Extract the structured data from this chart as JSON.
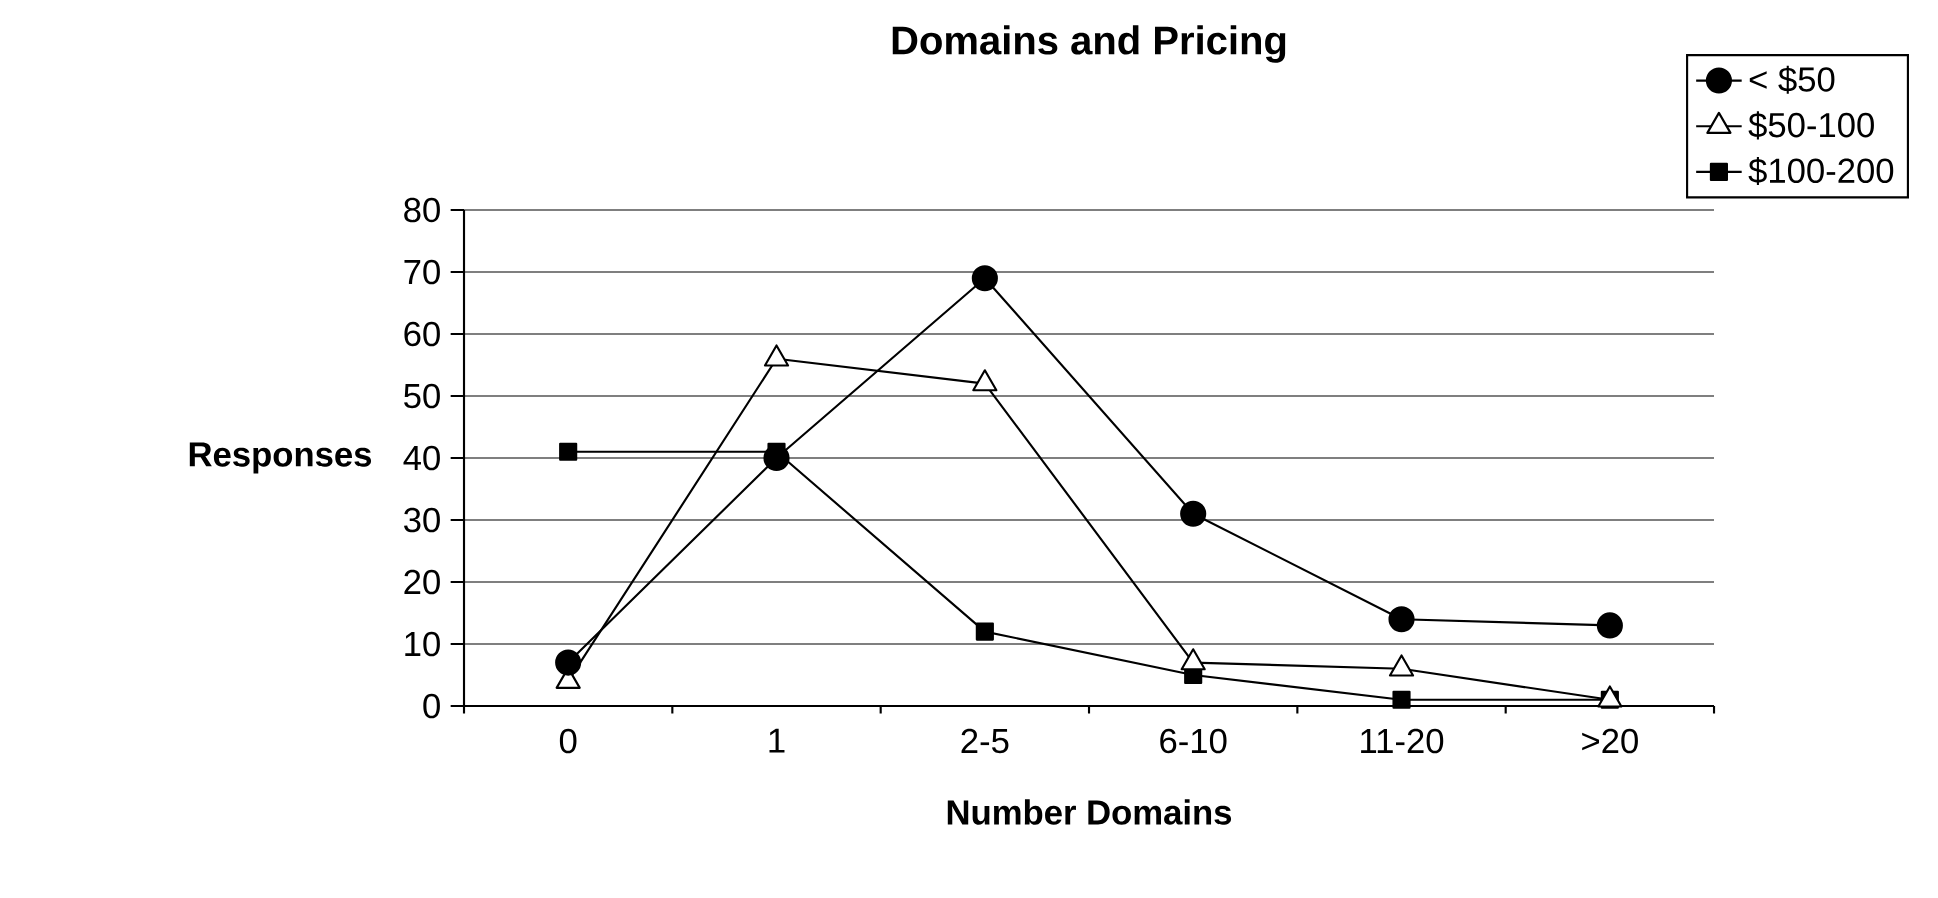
{
  "chart_data": {
    "type": "line",
    "title": "Domains and Pricing",
    "xlabel": "Number Domains",
    "ylabel": "Responses",
    "categories": [
      "0",
      "1",
      "2-5",
      "6-10",
      "11-20",
      ">20"
    ],
    "series": [
      {
        "name": "< $50",
        "color": "#000000",
        "marker": "circle",
        "values": [
          7,
          40,
          69,
          31,
          14,
          13
        ]
      },
      {
        "name": "$50-100",
        "color": "#000000",
        "marker": "triangle",
        "values": [
          4,
          56,
          52,
          7,
          6,
          1
        ]
      },
      {
        "name": "$100-200",
        "color": "#000000",
        "marker": "square",
        "values": [
          41,
          41,
          12,
          5,
          1,
          1
        ]
      }
    ],
    "ylim": [
      0,
      80
    ],
    "yticks": [
      0,
      10,
      20,
      30,
      40,
      50,
      60,
      70,
      80
    ],
    "grid": "y",
    "legend": "top right",
    "line_style": "solid"
  }
}
